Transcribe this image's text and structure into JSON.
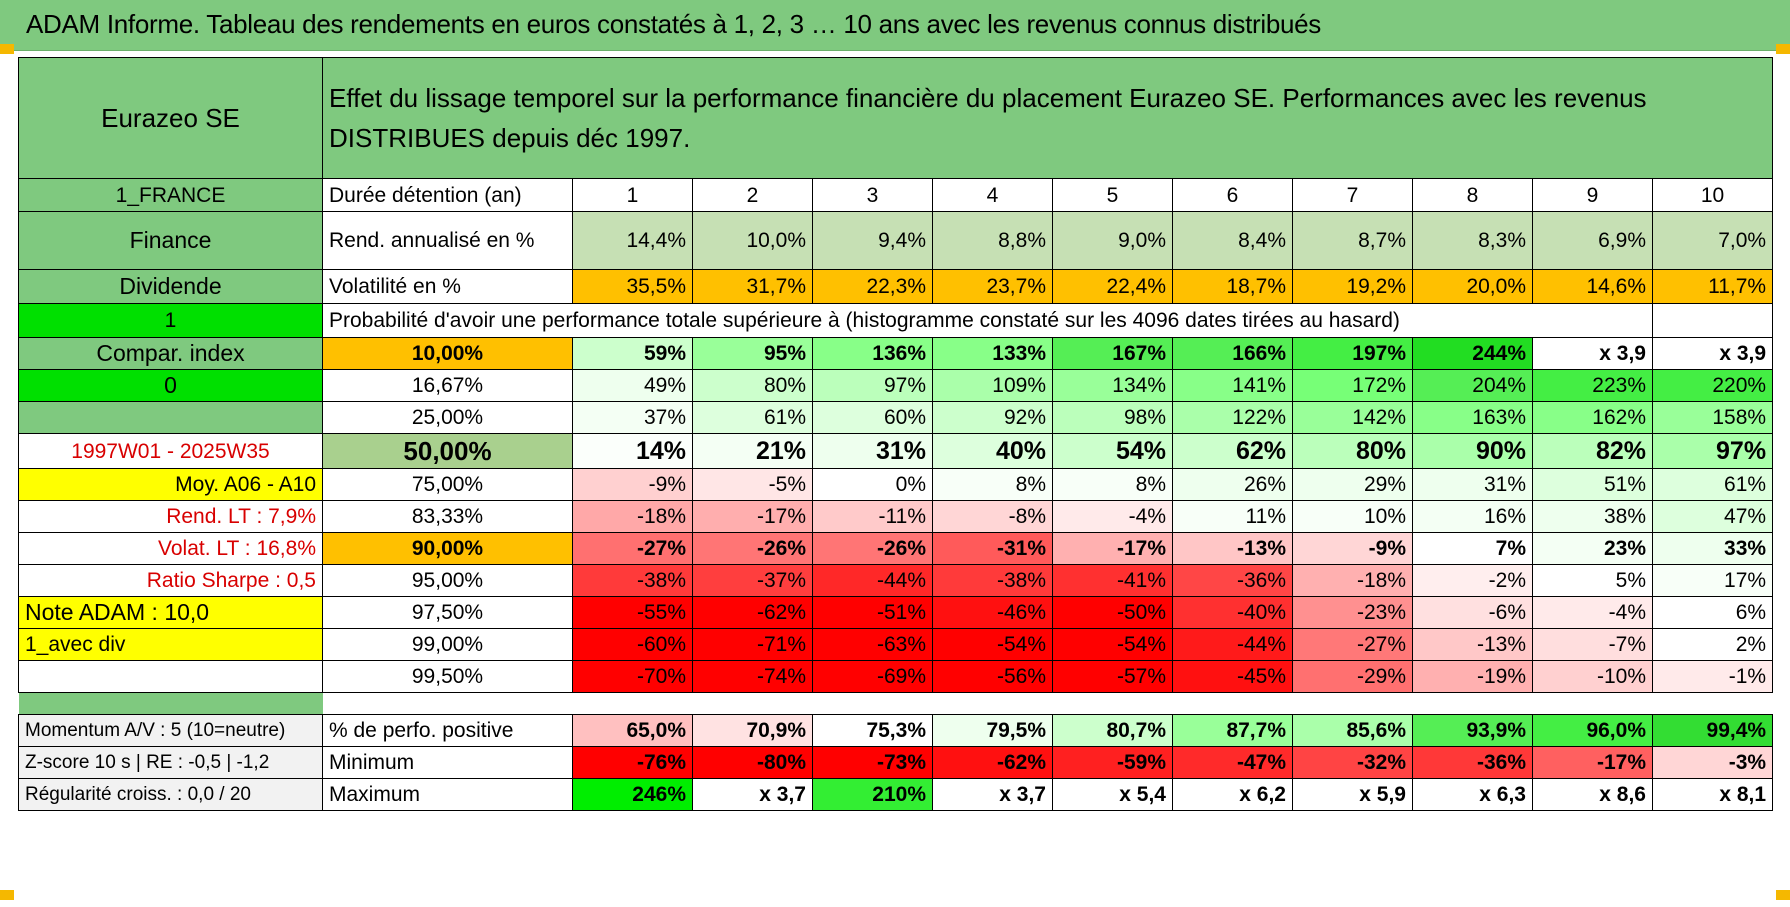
{
  "title": "ADAM Informe. Tableau des rendements en euros constatés à 1, 2, 3 … 10 ans avec les revenus connus distribués",
  "header": {
    "fund": "Eurazeo SE",
    "description": "Effet du lissage temporel sur la performance financière du placement Eurazeo SE. Performances avec les revenus DISTRIBUES depuis déc 1997."
  },
  "side": {
    "country": "1_FRANCE",
    "sector": "Finance",
    "type": "Dividende",
    "flag1": "1",
    "compar": "Compar. index",
    "flag0": "0",
    "period": "1997W01 - 2025W35",
    "moy": "Moy. A06 - A10",
    "rend_lt": "Rend. LT :   7,9%",
    "volat_lt": "Volat. LT :   16,8%",
    "sharpe": "Ratio Sharpe :    0,5",
    "note": "Note ADAM : 10,0",
    "avec_div": "1_avec div",
    "momentum": "Momentum A/V : 5 (10=neutre)",
    "zscore": "Z-score 10 s | RE : -0,5 | -1,2",
    "regularite": "Régularité croiss. : 0,0 / 20"
  },
  "labels": {
    "duree": "Durée détention (an)",
    "rend": "Rend. annualisé en %",
    "volat": "Volatilité en %",
    "proba": "Probabilité d'avoir une performance totale supérieure à (histogramme constaté sur les 4096 dates tirées au hasard)",
    "positive": "% de perfo. positive",
    "minimum": "Minimum",
    "maximum": "Maximum"
  },
  "years": [
    "1",
    "2",
    "3",
    "4",
    "5",
    "6",
    "7",
    "8",
    "9",
    "10"
  ],
  "rend": [
    "14,4%",
    "10,0%",
    "9,4%",
    "8,8%",
    "9,0%",
    "8,4%",
    "8,7%",
    "8,3%",
    "6,9%",
    "7,0%"
  ],
  "volat": [
    "35,5%",
    "31,7%",
    "22,3%",
    "23,7%",
    "22,4%",
    "18,7%",
    "19,2%",
    "20,0%",
    "14,6%",
    "11,7%"
  ],
  "prob_rows": [
    {
      "threshold": "10,00%",
      "cells": [
        "59%",
        "95%",
        "136%",
        "133%",
        "167%",
        "166%",
        "197%",
        "244%",
        "x 3,9",
        "x 3,9"
      ]
    },
    {
      "threshold": "16,67%",
      "cells": [
        "49%",
        "80%",
        "97%",
        "109%",
        "134%",
        "141%",
        "172%",
        "204%",
        "223%",
        "220%"
      ]
    },
    {
      "threshold": "25,00%",
      "cells": [
        "37%",
        "61%",
        "60%",
        "92%",
        "98%",
        "122%",
        "142%",
        "163%",
        "162%",
        "158%"
      ]
    },
    {
      "threshold": "50,00%",
      "cells": [
        "14%",
        "21%",
        "31%",
        "40%",
        "54%",
        "62%",
        "80%",
        "90%",
        "82%",
        "97%"
      ]
    },
    {
      "threshold": "75,00%",
      "cells": [
        "-9%",
        "-5%",
        "0%",
        "8%",
        "8%",
        "26%",
        "29%",
        "31%",
        "51%",
        "61%"
      ]
    },
    {
      "threshold": "83,33%",
      "cells": [
        "-18%",
        "-17%",
        "-11%",
        "-8%",
        "-4%",
        "11%",
        "10%",
        "16%",
        "38%",
        "47%"
      ]
    },
    {
      "threshold": "90,00%",
      "cells": [
        "-27%",
        "-26%",
        "-26%",
        "-31%",
        "-17%",
        "-13%",
        "-9%",
        "7%",
        "23%",
        "33%"
      ]
    },
    {
      "threshold": "95,00%",
      "cells": [
        "-38%",
        "-37%",
        "-44%",
        "-38%",
        "-41%",
        "-36%",
        "-18%",
        "-2%",
        "5%",
        "17%"
      ]
    },
    {
      "threshold": "97,50%",
      "cells": [
        "-55%",
        "-62%",
        "-51%",
        "-46%",
        "-50%",
        "-40%",
        "-23%",
        "-6%",
        "-4%",
        "6%"
      ]
    },
    {
      "threshold": "99,00%",
      "cells": [
        "-60%",
        "-71%",
        "-63%",
        "-54%",
        "-54%",
        "-44%",
        "-27%",
        "-13%",
        "-7%",
        "2%"
      ]
    },
    {
      "threshold": "99,50%",
      "cells": [
        "-70%",
        "-74%",
        "-69%",
        "-56%",
        "-57%",
        "-45%",
        "-29%",
        "-19%",
        "-10%",
        "-1%"
      ]
    }
  ],
  "positive": [
    "65,0%",
    "70,9%",
    "75,3%",
    "79,5%",
    "80,7%",
    "87,7%",
    "85,6%",
    "93,9%",
    "96,0%",
    "99,4%"
  ],
  "minimum": [
    "-76%",
    "-80%",
    "-73%",
    "-62%",
    "-59%",
    "-47%",
    "-32%",
    "-36%",
    "-17%",
    "-3%"
  ],
  "maximum": [
    "246%",
    "x 3,7",
    "210%",
    "x 3,7",
    "x 5,4",
    "x 6,2",
    "x 5,9",
    "x 6,3",
    "x 8,6",
    "x 8,1"
  ],
  "colors": {
    "header_green": "#7fc97f",
    "rend_green": "#c6e0b4",
    "volat_orange": "#ffc000",
    "highlight_yellow": "#ffff00",
    "flag_green": "#00e000",
    "median_green": "#a9d08e",
    "label_red": "#d80000"
  },
  "cell_colors": {
    "prob": [
      [
        "#ccffcc",
        "#99ff99",
        "#88ff88",
        "#88ff88",
        "#55ee55",
        "#55ee55",
        "#44ee44",
        "#22dd22",
        "#ffffff",
        "#ffffff"
      ],
      [
        "#eeffee",
        "#ccffcc",
        "#bbffbb",
        "#aaffaa",
        "#99ff99",
        "#88ff88",
        "#77ff77",
        "#55ee55",
        "#44ee44",
        "#44ee44"
      ],
      [
        "#f4fff4",
        "#ddffdd",
        "#ddffdd",
        "#ccffcc",
        "#bbffbb",
        "#aaffaa",
        "#99ff99",
        "#88ff88",
        "#88ff88",
        "#99ff99"
      ],
      [
        "#fbfffb",
        "#f4fff4",
        "#eeffee",
        "#ddffdd",
        "#ccffcc",
        "#ccffcc",
        "#bbffbb",
        "#aaffaa",
        "#bbffbb",
        "#aaffaa"
      ],
      [
        "#ffd0d0",
        "#ffe6e6",
        "#ffffff",
        "#f8fff8",
        "#f8fff8",
        "#eeffee",
        "#eeffee",
        "#eeffee",
        "#ddffdd",
        "#ddffdd"
      ],
      [
        "#ffa8a8",
        "#ffaeae",
        "#ffcaca",
        "#ffd6d6",
        "#ffeaea",
        "#f8fff8",
        "#f8fff8",
        "#f4fff4",
        "#eeffee",
        "#ddffdd"
      ],
      [
        "#ff7070",
        "#ff7575",
        "#ff7575",
        "#ff5a5a",
        "#ffb0b0",
        "#ffc6c6",
        "#ffd6d6",
        "#ffffff",
        "#f4fff4",
        "#eeffee"
      ],
      [
        "#ff3a3a",
        "#ff3e3e",
        "#ff2828",
        "#ff3a3a",
        "#ff3030",
        "#ff4646",
        "#ffb0b0",
        "#ffeeee",
        "#ffffff",
        "#f8fff8"
      ],
      [
        "#ff0000",
        "#ff0000",
        "#ff0000",
        "#ff1010",
        "#ff0000",
        "#ff3030",
        "#ff9090",
        "#ffe0e0",
        "#ffeaea",
        "#ffffff"
      ],
      [
        "#ff0000",
        "#ff0000",
        "#ff0000",
        "#ff0000",
        "#ff0000",
        "#ff1a1a",
        "#ff7878",
        "#ffc8c8",
        "#ffdede",
        "#ffffff"
      ],
      [
        "#ff0000",
        "#ff0000",
        "#ff0000",
        "#ff0000",
        "#ff0000",
        "#ff1010",
        "#ff7070",
        "#ffb0b0",
        "#ffd0d0",
        "#ffeaea"
      ]
    ],
    "positive": [
      "#ffc0c0",
      "#ffe2e2",
      "#ffffff",
      "#eeffee",
      "#ccffcc",
      "#99ff99",
      "#aaffaa",
      "#55ee55",
      "#44ee44",
      "#33dd33"
    ],
    "minimum": [
      "#ff0000",
      "#ff0000",
      "#ff0000",
      "#ff1010",
      "#ff2020",
      "#ff2a2a",
      "#ff4444",
      "#ff3838",
      "#ff6060",
      "#ffd6d6"
    ],
    "maximum": [
      "#00ee00",
      "#ffffff",
      "#33ee33",
      "#ffffff",
      "#ffffff",
      "#ffffff",
      "#ffffff",
      "#ffffff",
      "#ffffff",
      "#ffffff"
    ]
  }
}
